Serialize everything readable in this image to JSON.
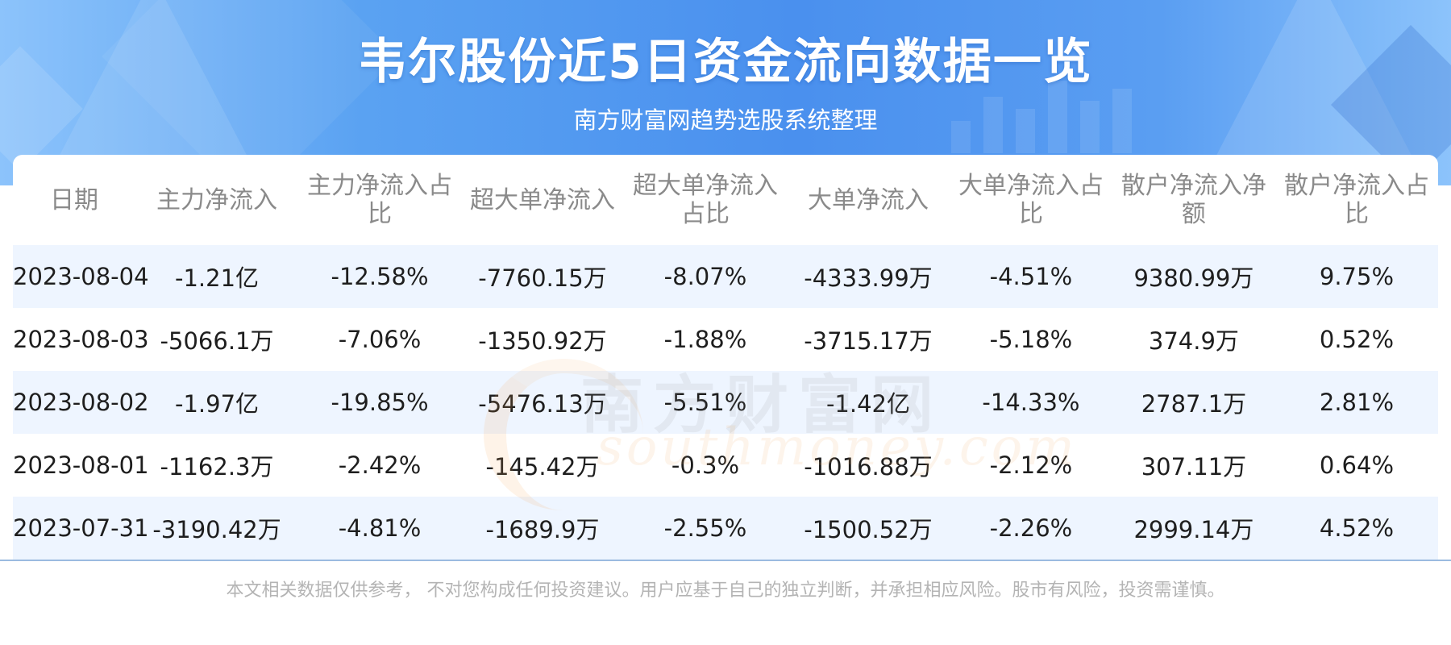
{
  "header": {
    "title": "韦尔股份近5日资金流向数据一览",
    "subtitle": "南方财富网趋势选股系统整理"
  },
  "watermark": {
    "cn": "南方财富网",
    "en": "southmoney.com"
  },
  "table": {
    "columns": [
      "日期",
      "主力净流入",
      "主力净流入占比",
      "超大单净流入",
      "超大单净流入占比",
      "大单净流入",
      "大单净流入占比",
      "散户净流入净额",
      "散户净流入占比"
    ],
    "rows": [
      [
        "2023-08-04",
        "-1.21亿",
        "-12.58%",
        "-7760.15万",
        "-8.07%",
        "-4333.99万",
        "-4.51%",
        "9380.99万",
        "9.75%"
      ],
      [
        "2023-08-03",
        "-5066.1万",
        "-7.06%",
        "-1350.92万",
        "-1.88%",
        "-3715.17万",
        "-5.18%",
        "374.9万",
        "0.52%"
      ],
      [
        "2023-08-02",
        "-1.97亿",
        "-19.85%",
        "-5476.13万",
        "-5.51%",
        "-1.42亿",
        "-14.33%",
        "2787.1万",
        "2.81%"
      ],
      [
        "2023-08-01",
        "-1162.3万",
        "-2.42%",
        "-145.42万",
        "-0.3%",
        "-1016.88万",
        "-2.12%",
        "307.11万",
        "0.64%"
      ],
      [
        "2023-07-31",
        "-3190.42万",
        "-4.81%",
        "-1689.9万",
        "-2.55%",
        "-1500.52万",
        "-2.26%",
        "2999.14万",
        "4.52%"
      ]
    ]
  },
  "footer": {
    "disclaimer": "本文相关数据仅供参考， 不对您构成任何投资建议。用户应基于自己的独立判断，并承担相应风险。股市有风险，投资需谨慎。"
  },
  "colors": {
    "header_blue": "#4a90ee",
    "row_stripe": "#eef5ff",
    "header_text": "#8a8a8a",
    "cell_text": "#1e1e1e"
  }
}
